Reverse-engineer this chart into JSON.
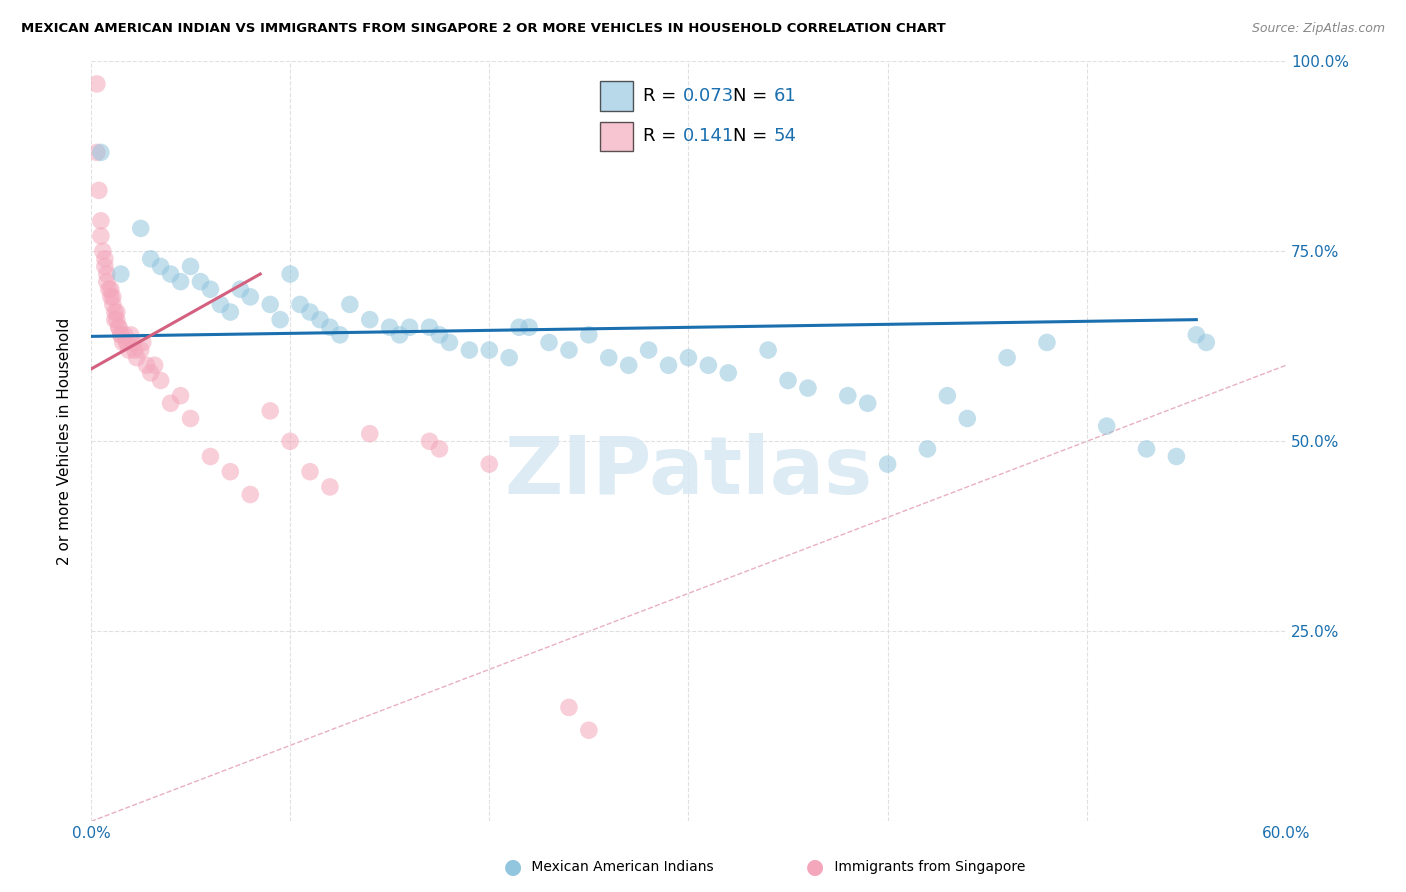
{
  "title": "MEXICAN AMERICAN INDIAN VS IMMIGRANTS FROM SINGAPORE 2 OR MORE VEHICLES IN HOUSEHOLD CORRELATION CHART",
  "source": "Source: ZipAtlas.com",
  "ylabel": "2 or more Vehicles in Household",
  "xlim": [
    0.0,
    0.6
  ],
  "ylim": [
    0.0,
    1.0
  ],
  "legend1_r": "0.073",
  "legend1_n": "61",
  "legend2_r": "0.141",
  "legend2_n": "54",
  "blue_color": "#92c5de",
  "pink_color": "#f4a6bb",
  "trendline_blue": "#1a6faf",
  "trendline_pink": "#d46080",
  "diag_color": "#e8b4c0",
  "watermark": "ZIPatlas",
  "blue_trend_x": [
    0.0,
    0.555
  ],
  "blue_trend_y": [
    0.638,
    0.66
  ],
  "pink_trend_x": [
    0.0,
    0.085
  ],
  "pink_trend_y": [
    0.595,
    0.72
  ],
  "blue_scatter_x": [
    0.005,
    0.015,
    0.025,
    0.03,
    0.035,
    0.04,
    0.045,
    0.05,
    0.055,
    0.06,
    0.065,
    0.07,
    0.075,
    0.08,
    0.09,
    0.095,
    0.1,
    0.105,
    0.11,
    0.115,
    0.12,
    0.125,
    0.13,
    0.14,
    0.15,
    0.155,
    0.16,
    0.17,
    0.175,
    0.18,
    0.19,
    0.2,
    0.21,
    0.215,
    0.22,
    0.23,
    0.24,
    0.25,
    0.26,
    0.27,
    0.28,
    0.29,
    0.3,
    0.31,
    0.32,
    0.34,
    0.35,
    0.36,
    0.38,
    0.39,
    0.4,
    0.42,
    0.43,
    0.44,
    0.46,
    0.48,
    0.51,
    0.53,
    0.545,
    0.555,
    0.56
  ],
  "blue_scatter_y": [
    0.88,
    0.72,
    0.78,
    0.74,
    0.73,
    0.72,
    0.71,
    0.73,
    0.71,
    0.7,
    0.68,
    0.67,
    0.7,
    0.69,
    0.68,
    0.66,
    0.72,
    0.68,
    0.67,
    0.66,
    0.65,
    0.64,
    0.68,
    0.66,
    0.65,
    0.64,
    0.65,
    0.65,
    0.64,
    0.63,
    0.62,
    0.62,
    0.61,
    0.65,
    0.65,
    0.63,
    0.62,
    0.64,
    0.61,
    0.6,
    0.62,
    0.6,
    0.61,
    0.6,
    0.59,
    0.62,
    0.58,
    0.57,
    0.56,
    0.55,
    0.47,
    0.49,
    0.56,
    0.53,
    0.61,
    0.63,
    0.52,
    0.49,
    0.48,
    0.64,
    0.63
  ],
  "pink_scatter_x": [
    0.003,
    0.003,
    0.004,
    0.005,
    0.005,
    0.006,
    0.007,
    0.007,
    0.008,
    0.008,
    0.009,
    0.01,
    0.01,
    0.011,
    0.011,
    0.012,
    0.012,
    0.013,
    0.013,
    0.014,
    0.014,
    0.015,
    0.015,
    0.016,
    0.017,
    0.018,
    0.018,
    0.019,
    0.02,
    0.021,
    0.022,
    0.023,
    0.025,
    0.026,
    0.028,
    0.03,
    0.032,
    0.035,
    0.04,
    0.045,
    0.05,
    0.06,
    0.07,
    0.08,
    0.09,
    0.1,
    0.11,
    0.12,
    0.14,
    0.17,
    0.175,
    0.2,
    0.24,
    0.25
  ],
  "pink_scatter_y": [
    0.97,
    0.88,
    0.83,
    0.79,
    0.77,
    0.75,
    0.74,
    0.73,
    0.72,
    0.71,
    0.7,
    0.7,
    0.69,
    0.69,
    0.68,
    0.67,
    0.66,
    0.67,
    0.66,
    0.65,
    0.65,
    0.64,
    0.64,
    0.63,
    0.64,
    0.63,
    0.63,
    0.62,
    0.64,
    0.63,
    0.62,
    0.61,
    0.62,
    0.63,
    0.6,
    0.59,
    0.6,
    0.58,
    0.55,
    0.56,
    0.53,
    0.48,
    0.46,
    0.43,
    0.54,
    0.5,
    0.46,
    0.44,
    0.51,
    0.5,
    0.49,
    0.47,
    0.15,
    0.12
  ]
}
